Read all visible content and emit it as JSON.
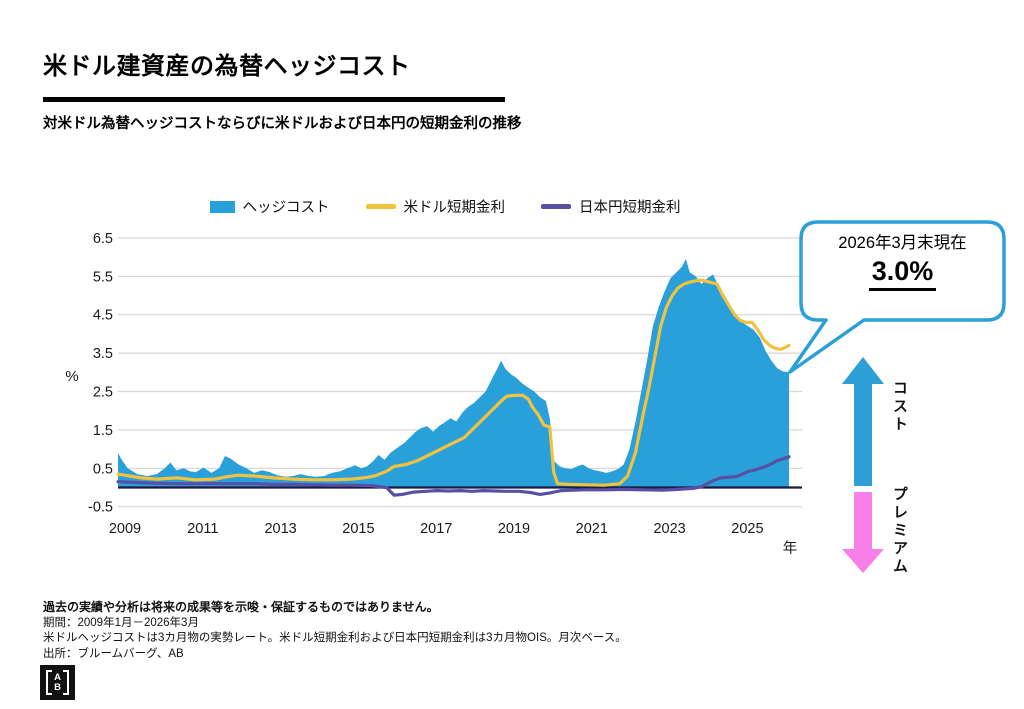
{
  "header": {
    "title": "米ドル建資産の為替ヘッジコスト",
    "subtitle": "対米ドル為替ヘッジコストならびに米ドルおよび日本円の短期金利の推移"
  },
  "legend": [
    {
      "label": "ヘッジコスト",
      "type": "area",
      "color": "#2AA0DB"
    },
    {
      "label": "米ドル短期金利",
      "type": "line",
      "color": "#F0C23E"
    },
    {
      "label": "日本円短期金利",
      "type": "line",
      "color": "#5950A5"
    }
  ],
  "callout": {
    "date_label": "2026年3月末現在",
    "value": "3.0%",
    "border_color": "#2B9FD8"
  },
  "annotations": {
    "cost_label": "コスト",
    "cost_color": "#2E9FD6",
    "premium_label": "プレミアム",
    "premium_color": "#F87FE8"
  },
  "chart_data": {
    "type": "area",
    "ylabel": "%",
    "xlabel": "年",
    "ylim": [
      -0.5,
      6.5
    ],
    "yticks": [
      6.5,
      5.5,
      4.5,
      3.5,
      2.5,
      1.5,
      0.5,
      -0.5
    ],
    "xticks": [
      2009,
      2011,
      2013,
      2015,
      2017,
      2019,
      2021,
      2023,
      2025
    ],
    "xlim": [
      2009.0,
      2026.25
    ],
    "grid": true,
    "gridline_color": "#d5d5d5",
    "zeroline_color": "#1b1b44",
    "series": [
      {
        "name": "ヘッジコスト",
        "type": "area",
        "color": "#2AA0DB",
        "points": [
          [
            2009.0,
            0.9
          ],
          [
            2009.08,
            0.75
          ],
          [
            2009.25,
            0.5
          ],
          [
            2009.5,
            0.35
          ],
          [
            2009.75,
            0.3
          ],
          [
            2010.0,
            0.35
          ],
          [
            2010.2,
            0.5
          ],
          [
            2010.35,
            0.65
          ],
          [
            2010.5,
            0.45
          ],
          [
            2010.7,
            0.5
          ],
          [
            2010.85,
            0.42
          ],
          [
            2011.0,
            0.4
          ],
          [
            2011.2,
            0.52
          ],
          [
            2011.4,
            0.38
          ],
          [
            2011.6,
            0.5
          ],
          [
            2011.75,
            0.82
          ],
          [
            2011.9,
            0.75
          ],
          [
            2012.1,
            0.6
          ],
          [
            2012.3,
            0.5
          ],
          [
            2012.5,
            0.38
          ],
          [
            2012.7,
            0.45
          ],
          [
            2012.9,
            0.4
          ],
          [
            2013.1,
            0.32
          ],
          [
            2013.3,
            0.28
          ],
          [
            2013.5,
            0.3
          ],
          [
            2013.7,
            0.35
          ],
          [
            2013.9,
            0.3
          ],
          [
            2014.1,
            0.28
          ],
          [
            2014.3,
            0.3
          ],
          [
            2014.5,
            0.38
          ],
          [
            2014.7,
            0.42
          ],
          [
            2014.9,
            0.5
          ],
          [
            2015.1,
            0.58
          ],
          [
            2015.25,
            0.5
          ],
          [
            2015.4,
            0.55
          ],
          [
            2015.55,
            0.68
          ],
          [
            2015.7,
            0.85
          ],
          [
            2015.85,
            0.72
          ],
          [
            2016.0,
            0.9
          ],
          [
            2016.2,
            1.05
          ],
          [
            2016.35,
            1.15
          ],
          [
            2016.5,
            1.3
          ],
          [
            2016.65,
            1.45
          ],
          [
            2016.8,
            1.55
          ],
          [
            2016.95,
            1.6
          ],
          [
            2017.1,
            1.45
          ],
          [
            2017.25,
            1.6
          ],
          [
            2017.4,
            1.7
          ],
          [
            2017.55,
            1.8
          ],
          [
            2017.7,
            1.72
          ],
          [
            2017.85,
            1.95
          ],
          [
            2018.0,
            2.1
          ],
          [
            2018.15,
            2.2
          ],
          [
            2018.3,
            2.35
          ],
          [
            2018.45,
            2.5
          ],
          [
            2018.6,
            2.8
          ],
          [
            2018.75,
            3.1
          ],
          [
            2018.85,
            3.3
          ],
          [
            2018.95,
            3.1
          ],
          [
            2019.1,
            2.95
          ],
          [
            2019.25,
            2.85
          ],
          [
            2019.4,
            2.7
          ],
          [
            2019.55,
            2.6
          ],
          [
            2019.7,
            2.5
          ],
          [
            2019.85,
            2.35
          ],
          [
            2020.0,
            2.25
          ],
          [
            2020.1,
            1.8
          ],
          [
            2020.2,
            0.7
          ],
          [
            2020.35,
            0.55
          ],
          [
            2020.5,
            0.5
          ],
          [
            2020.65,
            0.48
          ],
          [
            2020.8,
            0.55
          ],
          [
            2020.95,
            0.6
          ],
          [
            2021.1,
            0.5
          ],
          [
            2021.25,
            0.45
          ],
          [
            2021.4,
            0.42
          ],
          [
            2021.55,
            0.38
          ],
          [
            2021.7,
            0.42
          ],
          [
            2021.85,
            0.48
          ],
          [
            2022.0,
            0.6
          ],
          [
            2022.15,
            1.0
          ],
          [
            2022.3,
            1.7
          ],
          [
            2022.45,
            2.5
          ],
          [
            2022.6,
            3.3
          ],
          [
            2022.75,
            4.2
          ],
          [
            2022.9,
            4.7
          ],
          [
            2023.05,
            5.1
          ],
          [
            2023.2,
            5.45
          ],
          [
            2023.35,
            5.6
          ],
          [
            2023.5,
            5.75
          ],
          [
            2023.6,
            5.95
          ],
          [
            2023.7,
            5.6
          ],
          [
            2023.85,
            5.5
          ],
          [
            2024.0,
            5.3
          ],
          [
            2024.15,
            5.45
          ],
          [
            2024.3,
            5.55
          ],
          [
            2024.45,
            5.2
          ],
          [
            2024.6,
            4.9
          ],
          [
            2024.75,
            4.6
          ],
          [
            2024.9,
            4.45
          ],
          [
            2025.05,
            4.3
          ],
          [
            2025.2,
            4.2
          ],
          [
            2025.35,
            4.1
          ],
          [
            2025.5,
            3.9
          ],
          [
            2025.65,
            3.55
          ],
          [
            2025.8,
            3.3
          ],
          [
            2025.95,
            3.1
          ],
          [
            2026.1,
            3.02
          ],
          [
            2026.25,
            3.0
          ]
        ]
      },
      {
        "name": "米ドル短期金利",
        "type": "line",
        "color": "#F0C23E",
        "points": [
          [
            2009.0,
            0.35
          ],
          [
            2009.3,
            0.3
          ],
          [
            2009.6,
            0.25
          ],
          [
            2010.0,
            0.22
          ],
          [
            2010.5,
            0.25
          ],
          [
            2011.0,
            0.2
          ],
          [
            2011.5,
            0.22
          ],
          [
            2011.8,
            0.28
          ],
          [
            2012.1,
            0.32
          ],
          [
            2012.5,
            0.3
          ],
          [
            2013.0,
            0.25
          ],
          [
            2013.5,
            0.22
          ],
          [
            2014.0,
            0.2
          ],
          [
            2014.5,
            0.2
          ],
          [
            2015.0,
            0.22
          ],
          [
            2015.3,
            0.25
          ],
          [
            2015.6,
            0.3
          ],
          [
            2015.9,
            0.42
          ],
          [
            2016.1,
            0.55
          ],
          [
            2016.4,
            0.6
          ],
          [
            2016.7,
            0.7
          ],
          [
            2016.9,
            0.8
          ],
          [
            2017.1,
            0.9
          ],
          [
            2017.3,
            1.0
          ],
          [
            2017.6,
            1.15
          ],
          [
            2017.9,
            1.3
          ],
          [
            2018.1,
            1.5
          ],
          [
            2018.4,
            1.8
          ],
          [
            2018.7,
            2.1
          ],
          [
            2018.9,
            2.3
          ],
          [
            2019.0,
            2.38
          ],
          [
            2019.2,
            2.4
          ],
          [
            2019.4,
            2.4
          ],
          [
            2019.55,
            2.3
          ],
          [
            2019.65,
            2.1
          ],
          [
            2019.8,
            1.9
          ],
          [
            2019.95,
            1.62
          ],
          [
            2020.1,
            1.58
          ],
          [
            2020.2,
            0.4
          ],
          [
            2020.3,
            0.1
          ],
          [
            2020.6,
            0.08
          ],
          [
            2021.0,
            0.07
          ],
          [
            2021.5,
            0.06
          ],
          [
            2021.9,
            0.1
          ],
          [
            2022.1,
            0.3
          ],
          [
            2022.3,
            0.9
          ],
          [
            2022.5,
            1.9
          ],
          [
            2022.65,
            2.6
          ],
          [
            2022.8,
            3.4
          ],
          [
            2022.95,
            4.2
          ],
          [
            2023.1,
            4.7
          ],
          [
            2023.25,
            5.0
          ],
          [
            2023.4,
            5.2
          ],
          [
            2023.55,
            5.3
          ],
          [
            2023.7,
            5.35
          ],
          [
            2023.85,
            5.38
          ],
          [
            2024.0,
            5.4
          ],
          [
            2024.2,
            5.35
          ],
          [
            2024.4,
            5.3
          ],
          [
            2024.55,
            5.0
          ],
          [
            2024.7,
            4.75
          ],
          [
            2024.85,
            4.5
          ],
          [
            2025.0,
            4.35
          ],
          [
            2025.15,
            4.3
          ],
          [
            2025.3,
            4.3
          ],
          [
            2025.45,
            4.1
          ],
          [
            2025.6,
            3.85
          ],
          [
            2025.75,
            3.7
          ],
          [
            2025.9,
            3.62
          ],
          [
            2026.05,
            3.6
          ],
          [
            2026.25,
            3.7
          ]
        ]
      },
      {
        "name": "日本円短期金利",
        "type": "line",
        "color": "#5950A5",
        "points": [
          [
            2009.0,
            0.15
          ],
          [
            2009.5,
            0.13
          ],
          [
            2010.0,
            0.11
          ],
          [
            2010.5,
            0.1
          ],
          [
            2011.0,
            0.1
          ],
          [
            2011.5,
            0.1
          ],
          [
            2012.0,
            0.1
          ],
          [
            2012.5,
            0.1
          ],
          [
            2013.0,
            0.08
          ],
          [
            2013.5,
            0.08
          ],
          [
            2014.0,
            0.07
          ],
          [
            2014.5,
            0.06
          ],
          [
            2015.0,
            0.06
          ],
          [
            2015.5,
            0.05
          ],
          [
            2015.9,
            0.0
          ],
          [
            2016.1,
            -0.2
          ],
          [
            2016.3,
            -0.18
          ],
          [
            2016.6,
            -0.12
          ],
          [
            2016.9,
            -0.1
          ],
          [
            2017.2,
            -0.08
          ],
          [
            2017.5,
            -0.09
          ],
          [
            2017.8,
            -0.08
          ],
          [
            2018.1,
            -0.1
          ],
          [
            2018.4,
            -0.08
          ],
          [
            2018.7,
            -0.09
          ],
          [
            2019.0,
            -0.1
          ],
          [
            2019.3,
            -0.1
          ],
          [
            2019.6,
            -0.13
          ],
          [
            2019.85,
            -0.18
          ],
          [
            2020.1,
            -0.14
          ],
          [
            2020.4,
            -0.08
          ],
          [
            2020.7,
            -0.07
          ],
          [
            2021.0,
            -0.06
          ],
          [
            2021.5,
            -0.06
          ],
          [
            2022.0,
            -0.05
          ],
          [
            2022.5,
            -0.06
          ],
          [
            2023.0,
            -0.07
          ],
          [
            2023.4,
            -0.05
          ],
          [
            2023.8,
            -0.02
          ],
          [
            2024.0,
            0.02
          ],
          [
            2024.15,
            0.1
          ],
          [
            2024.3,
            0.18
          ],
          [
            2024.5,
            0.25
          ],
          [
            2024.7,
            0.27
          ],
          [
            2024.9,
            0.28
          ],
          [
            2025.05,
            0.35
          ],
          [
            2025.2,
            0.42
          ],
          [
            2025.35,
            0.45
          ],
          [
            2025.5,
            0.5
          ],
          [
            2025.65,
            0.55
          ],
          [
            2025.8,
            0.62
          ],
          [
            2025.95,
            0.7
          ],
          [
            2026.1,
            0.75
          ],
          [
            2026.25,
            0.8
          ]
        ]
      }
    ]
  },
  "footer": {
    "line1": "過去の実績や分析は将来の成果等を示唆・保証するものではありません。",
    "line2": "期間：2009年1月－2026年3月",
    "line3": "米ドルヘッジコストは3カ月物の実勢レート。米ドル短期金利および日本円短期金利は3カ月物OIS。月次ベース。",
    "line4": "出所：ブルームバーグ、AB"
  },
  "logo": {
    "top": "A",
    "bottom": "B"
  }
}
